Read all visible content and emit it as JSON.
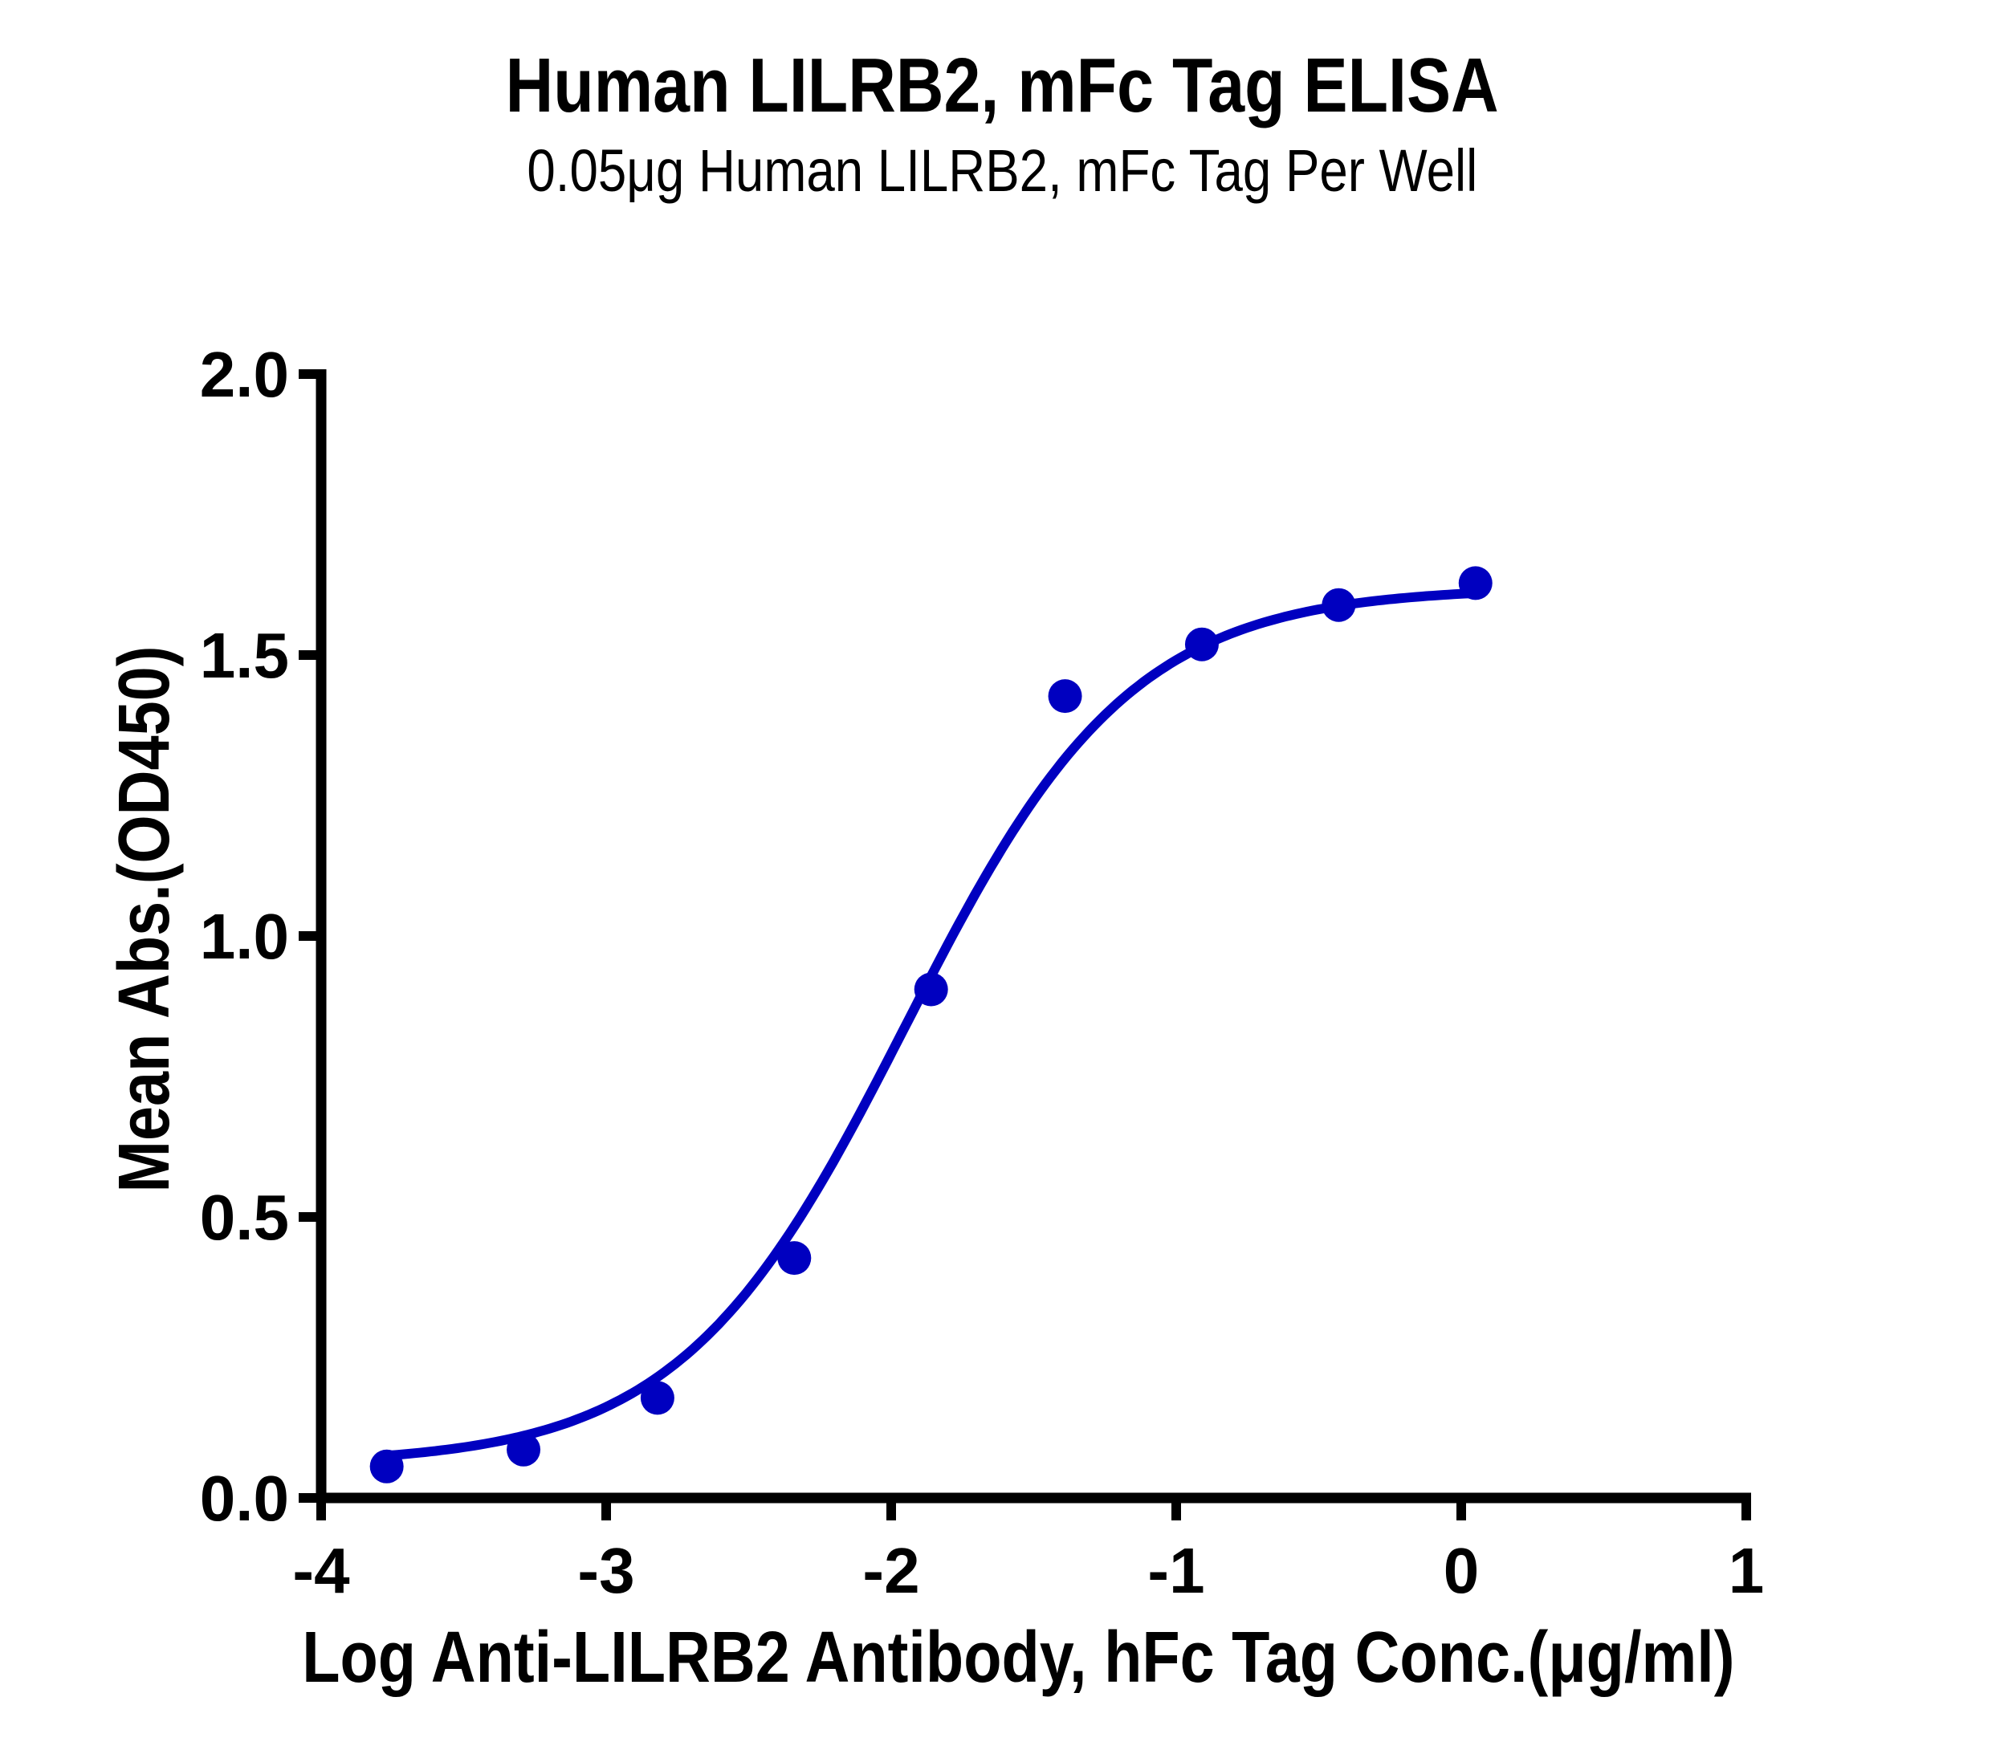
{
  "chart_data": {
    "type": "scatter",
    "title": "Human LILRB2, mFc Tag ELISA",
    "subtitle": "0.05μg Human LILRB2, mFc Tag Per Well",
    "xlabel": "Log Anti-LILRB2 Antibody, hFc Tag Conc.(μg/ml)",
    "ylabel": "Mean Abs.(OD450)",
    "xlim": [
      -4,
      1
    ],
    "ylim": [
      0,
      2.0
    ],
    "x_ticks": [
      "-4",
      "-3",
      "-2",
      "-1",
      "0",
      "1"
    ],
    "y_ticks": [
      "0.0",
      "0.5",
      "1.0",
      "1.5",
      "2.0"
    ],
    "grid": false,
    "legend": null,
    "series": [
      {
        "name": "Mean Abs.(OD450)",
        "color": "#0000C0",
        "marker": "circle",
        "fit": "4PL sigmoidal curve",
        "x": [
          -3.77,
          -3.29,
          -2.82,
          -2.34,
          -1.86,
          -1.39,
          -0.91,
          -0.43,
          0.05
        ],
        "values": [
          0.056,
          0.086,
          0.178,
          0.427,
          0.905,
          1.427,
          1.519,
          1.589,
          1.628
        ]
      }
    ],
    "fit_params": {
      "bottom": 0.06,
      "top": 1.62,
      "log_ec50": -1.95,
      "hill": 1.1
    }
  },
  "labels": {
    "title": "Human LILRB2, mFc Tag ELISA",
    "subtitle": "0.05μg Human LILRB2, mFc Tag Per Well",
    "xlabel": "Log Anti-LILRB2 Antibody, hFc Tag Conc.(μg/ml)",
    "ylabel": "Mean Abs.(OD450)"
  }
}
